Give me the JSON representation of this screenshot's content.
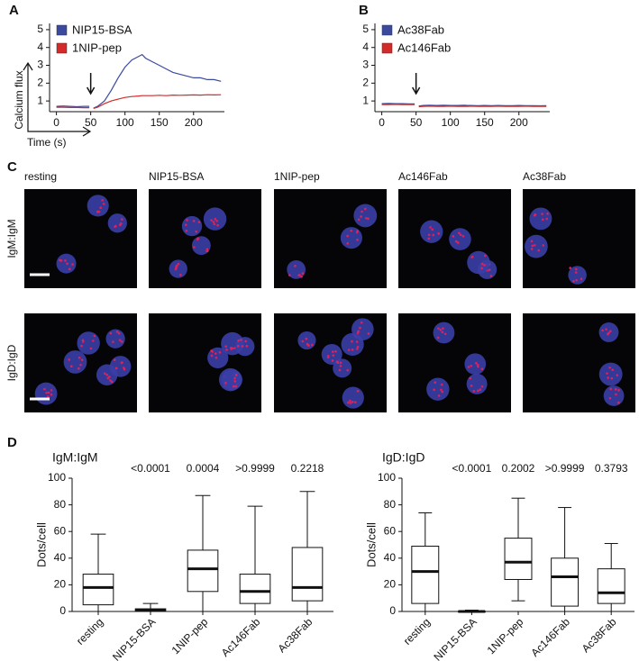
{
  "panel_labels": [
    "A",
    "B",
    "C",
    "D"
  ],
  "image_grid": {
    "columns": [
      "resting",
      "NIP15-BSA",
      "1NIP-pep",
      "Ac146Fab",
      "Ac38Fab"
    ],
    "rows": [
      "IgM:IgM",
      "IgD:IgD"
    ]
  },
  "chart_data": [
    {
      "type": "line",
      "inset_ylabel": "Calcium flux",
      "inset_xlabel": "Time (s)",
      "arrow_x": 50,
      "x": [
        0,
        10,
        20,
        30,
        40,
        48,
        50,
        54,
        60,
        70,
        80,
        90,
        100,
        110,
        120,
        125,
        130,
        140,
        150,
        160,
        170,
        180,
        190,
        200,
        210,
        220,
        230,
        240
      ],
      "series": [
        {
          "name": "NIP15-BSA",
          "color": "#3b4a9e",
          "values": [
            0.7,
            0.72,
            0.7,
            0.68,
            0.7,
            0.7,
            null,
            0.6,
            0.7,
            1.0,
            1.6,
            2.3,
            2.9,
            3.3,
            3.5,
            3.6,
            3.4,
            3.2,
            3.0,
            2.8,
            2.6,
            2.5,
            2.4,
            2.3,
            2.3,
            2.2,
            2.2,
            2.1
          ]
        },
        {
          "name": "1NIP-pep",
          "color": "#d42a2a",
          "values": [
            0.65,
            0.65,
            0.63,
            0.63,
            0.62,
            0.62,
            null,
            0.58,
            0.65,
            0.85,
            1.0,
            1.1,
            1.2,
            1.25,
            1.28,
            1.3,
            1.3,
            1.3,
            1.32,
            1.3,
            1.33,
            1.32,
            1.33,
            1.34,
            1.33,
            1.35,
            1.34,
            1.35
          ]
        }
      ],
      "xlim": [
        -10,
        245
      ],
      "xticks": [
        0,
        50,
        100,
        150,
        200
      ],
      "ylim": [
        0.4,
        5.35
      ],
      "yticks": [
        1,
        2,
        3,
        4,
        5
      ]
    },
    {
      "type": "line",
      "arrow_x": 50,
      "x": [
        0,
        10,
        20,
        30,
        40,
        48,
        50,
        54,
        60,
        70,
        80,
        90,
        100,
        110,
        120,
        125,
        130,
        140,
        150,
        160,
        170,
        180,
        190,
        200,
        210,
        220,
        230,
        240
      ],
      "series": [
        {
          "name": "Ac38Fab",
          "color": "#3b4a9e",
          "values": [
            0.85,
            0.86,
            0.85,
            0.85,
            0.84,
            0.84,
            null,
            0.72,
            0.75,
            0.76,
            0.75,
            0.76,
            0.75,
            0.75,
            0.76,
            0.75,
            0.75,
            0.74,
            0.75,
            0.74,
            0.75,
            0.74,
            0.74,
            0.75,
            0.74,
            0.74,
            0.73,
            0.74
          ]
        },
        {
          "name": "Ac146Fab",
          "color": "#d42a2a",
          "values": [
            0.8,
            0.8,
            0.81,
            0.8,
            0.8,
            0.8,
            null,
            0.68,
            0.7,
            0.71,
            0.7,
            0.7,
            0.71,
            0.7,
            0.7,
            0.7,
            0.71,
            0.7,
            0.7,
            0.7,
            0.71,
            0.7,
            0.7,
            0.7,
            0.71,
            0.7,
            0.7,
            0.7
          ]
        }
      ],
      "xlim": [
        -10,
        245
      ],
      "xticks": [
        0,
        50,
        100,
        150,
        200
      ],
      "ylim": [
        0.4,
        5.35
      ],
      "yticks": [
        1,
        2,
        3,
        4,
        5
      ]
    },
    {
      "type": "box",
      "title": "IgM:IgM",
      "ylabel": "Dots/cell",
      "categories": [
        "resting",
        "NIP15-BSA",
        "1NIP-pep",
        "Ac146Fab",
        "Ac38Fab"
      ],
      "boxes": [
        {
          "min": 0,
          "q1": 5,
          "median": 18,
          "q3": 28,
          "max": 58
        },
        {
          "min": 0,
          "q1": 0,
          "median": 1,
          "q3": 2,
          "max": 6
        },
        {
          "min": 0,
          "q1": 15,
          "median": 32,
          "q3": 46,
          "max": 87
        },
        {
          "min": 0,
          "q1": 6,
          "median": 15,
          "q3": 28,
          "max": 79
        },
        {
          "min": 0,
          "q1": 8,
          "median": 18,
          "q3": 48,
          "max": 90
        }
      ],
      "annotations": [
        null,
        "<0.0001",
        "0.0004",
        ">0.9999",
        "0.2218"
      ],
      "ylim": [
        0,
        100
      ],
      "yticks": [
        0,
        20,
        40,
        60,
        80,
        100
      ]
    },
    {
      "type": "box",
      "title": "IgD:IgD",
      "ylabel": "Dots/cell",
      "categories": [
        "resting",
        "NIP15-BSA",
        "1NIP-pep",
        "Ac146Fab",
        "Ac38Fab"
      ],
      "boxes": [
        {
          "min": 0,
          "q1": 6,
          "median": 30,
          "q3": 49,
          "max": 74
        },
        {
          "min": 0,
          "q1": 0,
          "median": 0,
          "q3": 0,
          "max": 1
        },
        {
          "min": 8,
          "q1": 24,
          "median": 37,
          "q3": 55,
          "max": 85
        },
        {
          "min": 0,
          "q1": 4,
          "median": 26,
          "q3": 40,
          "max": 78
        },
        {
          "min": 0,
          "q1": 6,
          "median": 14,
          "q3": 32,
          "max": 51
        }
      ],
      "annotations": [
        null,
        "<0.0001",
        "0.2002",
        ">0.9999",
        "0.3793"
      ],
      "ylim": [
        0,
        100
      ],
      "yticks": [
        0,
        20,
        40,
        60,
        80,
        100
      ]
    }
  ]
}
